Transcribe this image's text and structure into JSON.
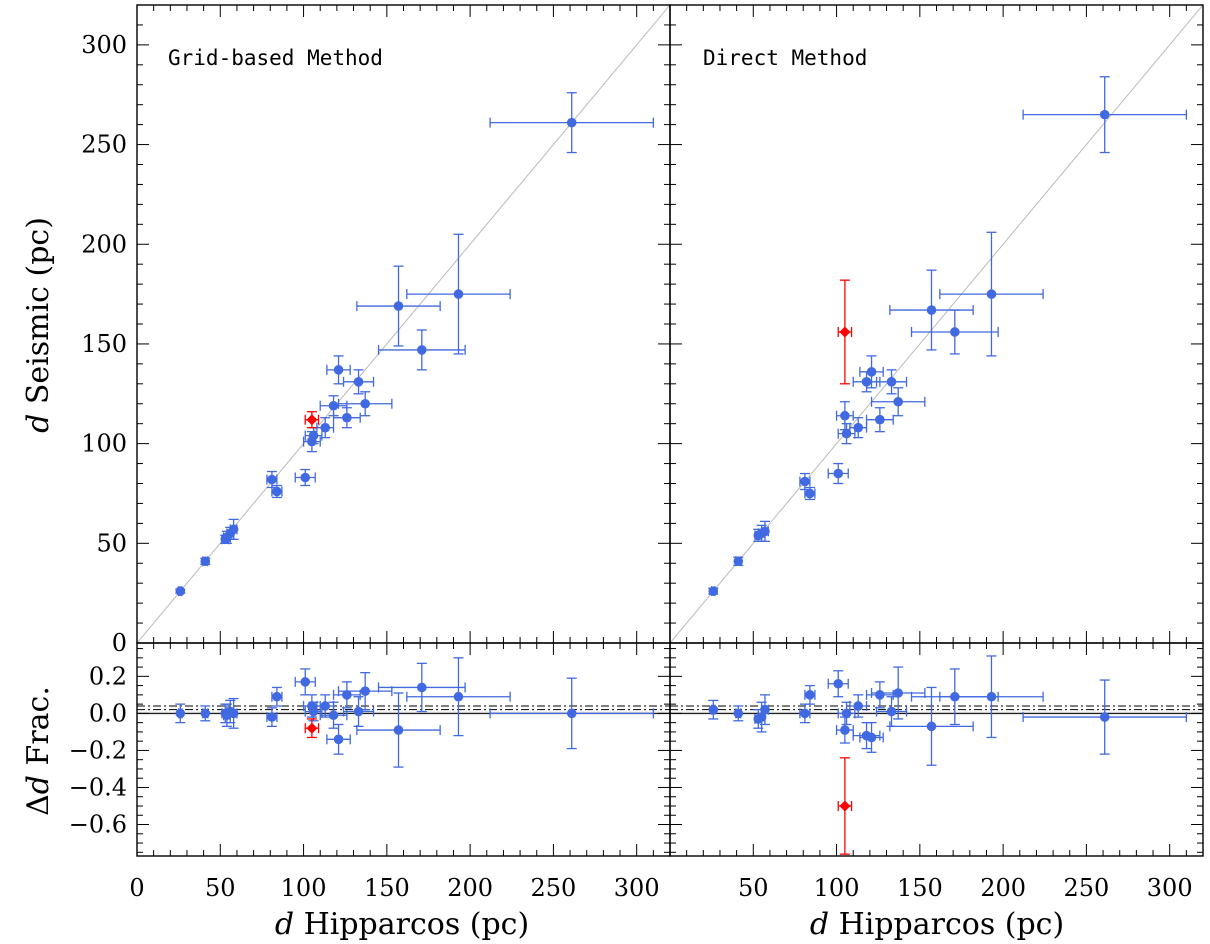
{
  "colors": {
    "normal": "#4169E1",
    "outlier": "#FF0000",
    "one_to_one": "#BBBBBB",
    "axes": "#000000"
  },
  "axes_text": {
    "xlabel_italic": "d",
    "xlabel_rest": " Hipparcos (pc)",
    "ylabel_top_italic": "d",
    "ylabel_top_rest": " Seismic (pc)",
    "ylabel_bottom_prefix": "Δ",
    "ylabel_bottom_italic": "d",
    "ylabel_bottom_rest": " Frac."
  },
  "ticks": {
    "top_y_labels": [
      "0",
      "50",
      "100",
      "150",
      "200",
      "250",
      "300"
    ],
    "bottom_y_labels": [
      "−0.6",
      "−0.4",
      "−0.2",
      "0.0",
      "0.2"
    ],
    "x_labels_left": [
      "0",
      "50",
      "100",
      "150",
      "200",
      "250",
      "300"
    ],
    "x_labels_right": [
      "50",
      "100",
      "150",
      "200",
      "250",
      "300"
    ]
  },
  "chart_data": [
    {
      "type": "scatter",
      "panel": "top-left",
      "title": "Grid-based Method",
      "xlim": [
        0,
        320
      ],
      "ylim": [
        0,
        320
      ],
      "x_major_ticks": [
        0,
        50,
        100,
        150,
        200,
        250,
        300
      ],
      "y_major_ticks": [
        0,
        50,
        100,
        150,
        200,
        250,
        300
      ],
      "reference_line": "y = x",
      "points": [
        {
          "x": 26,
          "y": 26,
          "xerr": 1,
          "yerr": 1
        },
        {
          "x": 41,
          "y": 41,
          "xerr": 1.5,
          "yerr": 1.5
        },
        {
          "x": 53,
          "y": 52,
          "xerr": 2,
          "yerr": 2
        },
        {
          "x": 54,
          "y": 53,
          "xerr": 2,
          "yerr": 3
        },
        {
          "x": 56,
          "y": 55,
          "xerr": 2,
          "yerr": 3
        },
        {
          "x": 58,
          "y": 57,
          "xerr": 2,
          "yerr": 5
        },
        {
          "x": 81,
          "y": 82,
          "xerr": 3,
          "yerr": 4
        },
        {
          "x": 84,
          "y": 76,
          "xerr": 3,
          "yerr": 3
        },
        {
          "x": 101,
          "y": 83,
          "xerr": 6,
          "yerr": 4
        },
        {
          "x": 105,
          "y": 101,
          "xerr": 5,
          "yerr": 5
        },
        {
          "x": 106,
          "y": 104,
          "xerr": 5,
          "yerr": 4
        },
        {
          "x": 105,
          "y": 112,
          "xerr": 4,
          "yerr": 4,
          "outlier": true
        },
        {
          "x": 113,
          "y": 108,
          "xerr": 5,
          "yerr": 5
        },
        {
          "x": 118,
          "y": 119,
          "xerr": 8,
          "yerr": 5
        },
        {
          "x": 121,
          "y": 137,
          "xerr": 7,
          "yerr": 7
        },
        {
          "x": 126,
          "y": 113,
          "xerr": 8,
          "yerr": 5
        },
        {
          "x": 133,
          "y": 131,
          "xerr": 9,
          "yerr": 6
        },
        {
          "x": 137,
          "y": 120,
          "xerr": 16,
          "yerr": 6
        },
        {
          "x": 157,
          "y": 169,
          "xerr": 25,
          "yerr": 20
        },
        {
          "x": 171,
          "y": 147,
          "xerr": 26,
          "yerr": 10
        },
        {
          "x": 193,
          "y": 175,
          "xerr": 31,
          "yerr": 30
        },
        {
          "x": 261,
          "y": 261,
          "xerr": 49,
          "yerr": 15
        }
      ]
    },
    {
      "type": "scatter",
      "panel": "top-right",
      "title": "Direct Method",
      "xlim": [
        0,
        320
      ],
      "ylim": [
        0,
        320
      ],
      "x_major_ticks": [
        50,
        100,
        150,
        200,
        250,
        300
      ],
      "y_major_ticks": [
        0,
        50,
        100,
        150,
        200,
        250,
        300
      ],
      "reference_line": "y = x",
      "points": [
        {
          "x": 26,
          "y": 26,
          "xerr": 1,
          "yerr": 1.5
        },
        {
          "x": 41,
          "y": 41,
          "xerr": 1.5,
          "yerr": 2
        },
        {
          "x": 53,
          "y": 54,
          "xerr": 2,
          "yerr": 3
        },
        {
          "x": 55,
          "y": 55,
          "xerr": 2,
          "yerr": 4
        },
        {
          "x": 57,
          "y": 56,
          "xerr": 2,
          "yerr": 5
        },
        {
          "x": 81,
          "y": 81,
          "xerr": 3,
          "yerr": 4
        },
        {
          "x": 84,
          "y": 75,
          "xerr": 3,
          "yerr": 3
        },
        {
          "x": 101,
          "y": 85,
          "xerr": 6,
          "yerr": 5
        },
        {
          "x": 105,
          "y": 114,
          "xerr": 5,
          "yerr": 7
        },
        {
          "x": 106,
          "y": 105,
          "xerr": 5,
          "yerr": 5
        },
        {
          "x": 105,
          "y": 156,
          "xerr": 4,
          "yerr": 26,
          "outlier": true
        },
        {
          "x": 113,
          "y": 108,
          "xerr": 5,
          "yerr": 5
        },
        {
          "x": 118,
          "y": 131,
          "xerr": 8,
          "yerr": 5
        },
        {
          "x": 121,
          "y": 136,
          "xerr": 7,
          "yerr": 8
        },
        {
          "x": 126,
          "y": 112,
          "xerr": 8,
          "yerr": 6
        },
        {
          "x": 133,
          "y": 131,
          "xerr": 9,
          "yerr": 6
        },
        {
          "x": 137,
          "y": 121,
          "xerr": 16,
          "yerr": 7
        },
        {
          "x": 157,
          "y": 167,
          "xerr": 25,
          "yerr": 20
        },
        {
          "x": 171,
          "y": 156,
          "xerr": 26,
          "yerr": 11
        },
        {
          "x": 193,
          "y": 175,
          "xerr": 31,
          "yerr": 31
        },
        {
          "x": 261,
          "y": 265,
          "xerr": 49,
          "yerr": 19
        }
      ]
    },
    {
      "type": "scatter",
      "panel": "bottom-left",
      "xlim": [
        0,
        320
      ],
      "ylim": [
        -0.77,
        0.38
      ],
      "x_major_ticks": [
        0,
        50,
        100,
        150,
        200,
        250,
        300
      ],
      "y_major_ticks": [
        -0.6,
        -0.4,
        -0.2,
        0.0,
        0.2
      ],
      "reference_lines": [
        {
          "y": 0.0,
          "style": "solid"
        },
        {
          "y": 0.02,
          "style": "dash-dot"
        },
        {
          "y": 0.04,
          "style": "dash-dot"
        }
      ],
      "points": [
        {
          "x": 26,
          "y": 0.0,
          "xerr": 1,
          "yerr": 0.05
        },
        {
          "x": 41,
          "y": 0.0,
          "xerr": 1.5,
          "yerr": 0.04
        },
        {
          "x": 53,
          "y": 0.0,
          "xerr": 2,
          "yerr": 0.05
        },
        {
          "x": 54,
          "y": -0.01,
          "xerr": 2,
          "yerr": 0.06
        },
        {
          "x": 56,
          "y": 0.01,
          "xerr": 2,
          "yerr": 0.06
        },
        {
          "x": 58,
          "y": 0.0,
          "xerr": 2,
          "yerr": 0.08
        },
        {
          "x": 81,
          "y": -0.02,
          "xerr": 3,
          "yerr": 0.05
        },
        {
          "x": 84,
          "y": 0.09,
          "xerr": 3,
          "yerr": 0.05
        },
        {
          "x": 101,
          "y": 0.17,
          "xerr": 6,
          "yerr": 0.07
        },
        {
          "x": 105,
          "y": 0.04,
          "xerr": 5,
          "yerr": 0.06
        },
        {
          "x": 106,
          "y": 0.01,
          "xerr": 5,
          "yerr": 0.05
        },
        {
          "x": 105,
          "y": -0.08,
          "xerr": 4,
          "yerr": 0.05,
          "outlier": true
        },
        {
          "x": 113,
          "y": 0.04,
          "xerr": 5,
          "yerr": 0.06
        },
        {
          "x": 118,
          "y": -0.01,
          "xerr": 8,
          "yerr": 0.07
        },
        {
          "x": 121,
          "y": -0.14,
          "xerr": 7,
          "yerr": 0.08
        },
        {
          "x": 126,
          "y": 0.1,
          "xerr": 8,
          "yerr": 0.07
        },
        {
          "x": 133,
          "y": 0.01,
          "xerr": 9,
          "yerr": 0.08
        },
        {
          "x": 137,
          "y": 0.12,
          "xerr": 16,
          "yerr": 0.1
        },
        {
          "x": 157,
          "y": -0.09,
          "xerr": 25,
          "yerr": 0.2
        },
        {
          "x": 171,
          "y": 0.14,
          "xerr": 26,
          "yerr": 0.13
        },
        {
          "x": 193,
          "y": 0.09,
          "xerr": 31,
          "yerr": 0.21
        },
        {
          "x": 261,
          "y": 0.0,
          "xerr": 49,
          "yerr": 0.19
        }
      ]
    },
    {
      "type": "scatter",
      "panel": "bottom-right",
      "xlim": [
        0,
        320
      ],
      "ylim": [
        -0.77,
        0.38
      ],
      "x_major_ticks": [
        50,
        100,
        150,
        200,
        250,
        300
      ],
      "y_major_ticks": [
        -0.6,
        -0.4,
        -0.2,
        0.0,
        0.2
      ],
      "reference_lines": [
        {
          "y": 0.0,
          "style": "solid"
        },
        {
          "y": 0.02,
          "style": "dash-dot"
        },
        {
          "y": 0.04,
          "style": "dash-dot"
        }
      ],
      "points": [
        {
          "x": 26,
          "y": 0.02,
          "xerr": 1,
          "yerr": 0.05
        },
        {
          "x": 41,
          "y": 0.0,
          "xerr": 1.5,
          "yerr": 0.04
        },
        {
          "x": 53,
          "y": -0.03,
          "xerr": 2,
          "yerr": 0.05
        },
        {
          "x": 55,
          "y": -0.02,
          "xerr": 2,
          "yerr": 0.08
        },
        {
          "x": 57,
          "y": 0.02,
          "xerr": 2,
          "yerr": 0.08
        },
        {
          "x": 81,
          "y": 0.0,
          "xerr": 3,
          "yerr": 0.05
        },
        {
          "x": 84,
          "y": 0.1,
          "xerr": 3,
          "yerr": 0.05
        },
        {
          "x": 101,
          "y": 0.16,
          "xerr": 6,
          "yerr": 0.07
        },
        {
          "x": 105,
          "y": -0.09,
          "xerr": 5,
          "yerr": 0.07
        },
        {
          "x": 106,
          "y": 0.0,
          "xerr": 5,
          "yerr": 0.06
        },
        {
          "x": 105,
          "y": -0.5,
          "xerr": 4,
          "yerr": 0.26,
          "outlier": true
        },
        {
          "x": 113,
          "y": 0.04,
          "xerr": 5,
          "yerr": 0.06
        },
        {
          "x": 118,
          "y": -0.12,
          "xerr": 8,
          "yerr": 0.07
        },
        {
          "x": 121,
          "y": -0.13,
          "xerr": 7,
          "yerr": 0.08
        },
        {
          "x": 126,
          "y": 0.1,
          "xerr": 8,
          "yerr": 0.07
        },
        {
          "x": 133,
          "y": 0.01,
          "xerr": 9,
          "yerr": 0.08
        },
        {
          "x": 137,
          "y": 0.11,
          "xerr": 16,
          "yerr": 0.14
        },
        {
          "x": 157,
          "y": -0.07,
          "xerr": 25,
          "yerr": 0.21
        },
        {
          "x": 171,
          "y": 0.09,
          "xerr": 26,
          "yerr": 0.15
        },
        {
          "x": 193,
          "y": 0.09,
          "xerr": 31,
          "yerr": 0.22
        },
        {
          "x": 261,
          "y": -0.02,
          "xerr": 49,
          "yerr": 0.2
        }
      ]
    }
  ]
}
